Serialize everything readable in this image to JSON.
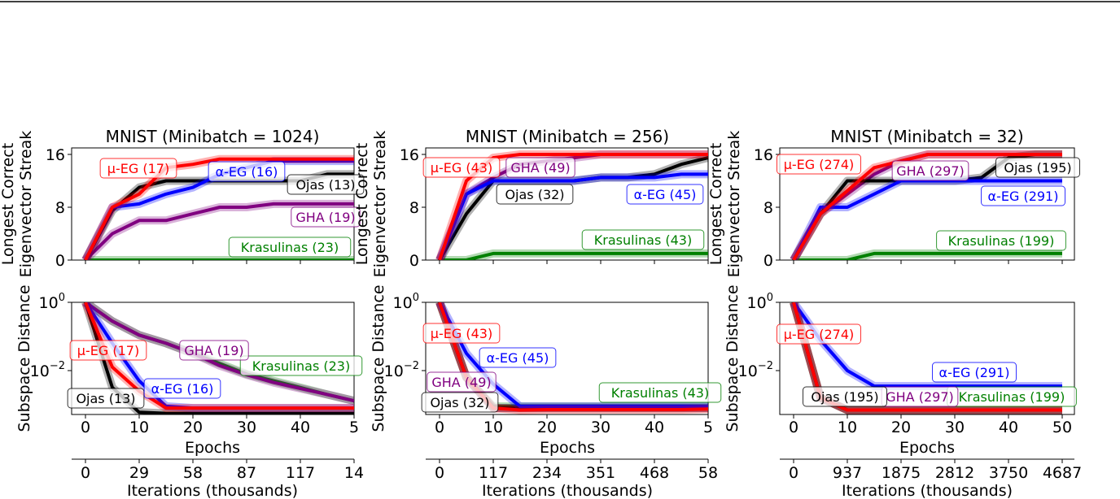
{
  "chart_data": [
    {
      "type": "line",
      "title": "MNIST (Minibatch = 1024)",
      "xlabel": "Epochs",
      "x": [
        0,
        5,
        10,
        15,
        20,
        25,
        30,
        35,
        40,
        45,
        50
      ],
      "x_ticks": [
        "0",
        "10",
        "20",
        "30",
        "40",
        "5"
      ],
      "secondary_xlabel": "Iterations (thousands)",
      "secondary_x_ticks": [
        "0",
        "29",
        "58",
        "87",
        "117",
        "14"
      ],
      "subplots": [
        {
          "ylabel": "Longest Correct Eigenvector Streak",
          "yscale": "linear",
          "ylim": [
            0,
            16
          ],
          "y_ticks": [
            "0",
            "8",
            "16"
          ],
          "series": [
            {
              "name": "Krasulinas (23)",
              "color": "#008000",
              "values": [
                0,
                0,
                0,
                0,
                0,
                0,
                0,
                0,
                0,
                0,
                0
              ]
            },
            {
              "name": "GHA (19)",
              "color": "#800080",
              "values": [
                0,
                4,
                6,
                6,
                7,
                8,
                8,
                8.5,
                8.5,
                8.5,
                8.5
              ]
            },
            {
              "name": "Ojas (13)",
              "color": "#000000",
              "values": [
                0,
                7.5,
                11,
                12,
                12,
                12,
                12,
                12,
                12,
                13,
                13
              ]
            },
            {
              "name": "α-EG (16)",
              "color": "#0000ff",
              "values": [
                0,
                8,
                8.5,
                10,
                11,
                13,
                14,
                15,
                15,
                15,
                15
              ]
            },
            {
              "name": "μ-EG (17)",
              "color": "#ff0000",
              "values": [
                0,
                8,
                10,
                14,
                14.5,
                15.3,
                15.3,
                15.3,
                15.3,
                15.3,
                15.3
              ]
            }
          ]
        },
        {
          "ylabel": "Subspace Distance",
          "yscale": "log",
          "ylim": [
            0.0005,
            1
          ],
          "y_ticks": [
            "10^0",
            "10^-2"
          ],
          "series": [
            {
              "name": "Krasulinas (23)",
              "color": "#008000",
              "values": [
                1,
                0.28,
                0.11,
                0.063,
                0.032,
                0.016,
                0.0079,
                0.005,
                0.0032,
                0.002,
                0.0013
              ]
            },
            {
              "name": "GHA (19)",
              "color": "#800080",
              "values": [
                1,
                0.28,
                0.11,
                0.063,
                0.032,
                0.014,
                0.0075,
                0.0045,
                0.003,
                0.002,
                0.0013
              ]
            },
            {
              "name": "Ojas (13)",
              "color": "#000000",
              "values": [
                1,
                0.0032,
                0.0006,
                0.00056,
                0.00056,
                0.00056,
                0.00056,
                0.00056,
                0.00056,
                0.00056,
                0.00056
              ]
            },
            {
              "name": "α-EG (16)",
              "color": "#0000ff",
              "values": [
                1,
                0.063,
                0.005,
                0.0009,
                0.0008,
                0.0008,
                0.0008,
                0.0008,
                0.0008,
                0.0008,
                0.0008
              ]
            },
            {
              "name": "μ-EG (17)",
              "color": "#ff0000",
              "values": [
                1,
                0.0126,
                0.0025,
                0.0008,
                0.0008,
                0.0008,
                0.0008,
                0.0008,
                0.0008,
                0.0008,
                0.0008
              ]
            }
          ]
        }
      ]
    },
    {
      "type": "line",
      "title": "MNIST (Minibatch = 256)",
      "xlabel": "Epochs",
      "x": [
        0,
        5,
        10,
        15,
        20,
        25,
        30,
        35,
        40,
        45,
        50
      ],
      "x_ticks": [
        "0",
        "10",
        "20",
        "30",
        "40",
        "5"
      ],
      "secondary_xlabel": "Iterations (thousands)",
      "secondary_x_ticks": [
        "0",
        "117",
        "234",
        "351",
        "468",
        "58"
      ],
      "subplots": [
        {
          "ylabel": "Longest Correct Eigenvector Streak",
          "yscale": "linear",
          "ylim": [
            0,
            16
          ],
          "y_ticks": [
            "0",
            "8",
            "16"
          ],
          "series": [
            {
              "name": "Krasulinas (43)",
              "color": "#008000",
              "values": [
                0,
                0,
                1,
                1,
                1,
                1,
                1,
                1,
                1,
                1,
                1
              ]
            },
            {
              "name": "GHA (49)",
              "color": "#800080",
              "values": [
                0,
                10,
                12.5,
                14.5,
                15,
                15.5,
                16,
                16,
                16,
                16,
                16
              ]
            },
            {
              "name": "Ojas (32)",
              "color": "#000000",
              "values": [
                0,
                7,
                12,
                12,
                12,
                12,
                12.5,
                12.5,
                13,
                14.5,
                15.5
              ]
            },
            {
              "name": "α-EG (45)",
              "color": "#0000ff",
              "values": [
                0,
                10,
                12,
                12,
                12,
                12,
                12.5,
                12.5,
                12.5,
                13,
                13
              ]
            },
            {
              "name": "μ-EG (43)",
              "color": "#ff0000",
              "values": [
                0,
                12,
                15.5,
                16,
                16,
                16,
                16,
                16,
                16,
                16,
                16
              ]
            }
          ]
        },
        {
          "ylabel": "Subspace Distance",
          "yscale": "log",
          "ylim": [
            0.0005,
            1
          ],
          "y_ticks": [
            "10^0",
            "10^-2"
          ],
          "series": [
            {
              "name": "Krasulinas (43)",
              "color": "#008000",
              "values": [
                1,
                0.0063,
                0.00089,
                0.00089,
                0.00089,
                0.00089,
                0.00089,
                0.00089,
                0.00089,
                0.00089,
                0.00089
              ]
            },
            {
              "name": "GHA (49)",
              "color": "#800080",
              "values": [
                1,
                0.0063,
                0.0008,
                0.0008,
                0.0008,
                0.0008,
                0.0008,
                0.0008,
                0.0008,
                0.0008,
                0.0008
              ]
            },
            {
              "name": "Ojas (32)",
              "color": "#000000",
              "values": [
                1,
                0.0063,
                0.0008,
                0.0008,
                0.0008,
                0.0008,
                0.0008,
                0.0008,
                0.0008,
                0.0008,
                0.0008
              ]
            },
            {
              "name": "α-EG (45)",
              "color": "#0000ff",
              "values": [
                1,
                0.032,
                0.004,
                0.00089,
                0.00089,
                0.00089,
                0.00089,
                0.00089,
                0.00089,
                0.00089,
                0.00089
              ]
            },
            {
              "name": "μ-EG (43)",
              "color": "#ff0000",
              "values": [
                1,
                0.0063,
                0.0008,
                0.0007,
                0.00072,
                0.00072,
                0.00072,
                0.00072,
                0.00072,
                0.00072,
                0.00075
              ]
            }
          ]
        }
      ]
    },
    {
      "type": "line",
      "title": "MNIST (Minibatch = 32)",
      "xlabel": "Epochs",
      "x": [
        0,
        5,
        10,
        15,
        20,
        25,
        30,
        35,
        40,
        45,
        50
      ],
      "x_ticks": [
        "0",
        "10",
        "20",
        "30",
        "40",
        "50"
      ],
      "secondary_xlabel": "Iterations (thousands)",
      "secondary_x_ticks": [
        "0",
        "937",
        "1875",
        "2812",
        "3750",
        "4687"
      ],
      "subplots": [
        {
          "ylabel": "Longest Correct Eigenvector Streak",
          "yscale": "linear",
          "ylim": [
            0,
            16
          ],
          "y_ticks": [
            "0",
            "8",
            "16"
          ],
          "series": [
            {
              "name": "Krasulinas (199)",
              "color": "#008000",
              "values": [
                0,
                0,
                0,
                1,
                1,
                1,
                1,
                1,
                1,
                1,
                1
              ]
            },
            {
              "name": "GHA (297)",
              "color": "#800080",
              "values": [
                0,
                7,
                10,
                13,
                15,
                16,
                16,
                16,
                16,
                16,
                16
              ]
            },
            {
              "name": "Ojas (195)",
              "color": "#000000",
              "values": [
                0,
                7,
                12,
                12,
                12,
                12,
                12,
                12.5,
                15.5,
                16,
                16
              ]
            },
            {
              "name": "α-EG (291)",
              "color": "#0000ff",
              "values": [
                0,
                8,
                8,
                10,
                12,
                12,
                12,
                12,
                12,
                12,
                12
              ]
            },
            {
              "name": "μ-EG (274)",
              "color": "#ff0000",
              "values": [
                0,
                7,
                10.5,
                14,
                15,
                16,
                16,
                16,
                16,
                16,
                16
              ]
            }
          ]
        },
        {
          "ylabel": "Subspace Distance",
          "yscale": "log",
          "ylim": [
            0.0005,
            1
          ],
          "y_ticks": [
            "10^0",
            "10^-2"
          ],
          "series": [
            {
              "name": "Krasulinas (199)",
              "color": "#008000",
              "values": [
                1,
                0.0016,
                0.0007,
                0.0007,
                0.0007,
                0.0007,
                0.0007,
                0.0007,
                0.0007,
                0.0007,
                0.0007
              ]
            },
            {
              "name": "GHA (297)",
              "color": "#800080",
              "values": [
                1,
                0.0016,
                0.0007,
                0.0007,
                0.0007,
                0.0007,
                0.0007,
                0.0007,
                0.0007,
                0.0007,
                0.0007
              ]
            },
            {
              "name": "Ojas (195)",
              "color": "#000000",
              "values": [
                1,
                0.0016,
                0.0007,
                0.0007,
                0.0007,
                0.0007,
                0.0007,
                0.0007,
                0.0007,
                0.0007,
                0.0007
              ]
            },
            {
              "name": "α-EG (291)",
              "color": "#0000ff",
              "values": [
                1,
                0.079,
                0.01,
                0.0035,
                0.0035,
                0.0035,
                0.0035,
                0.0035,
                0.0035,
                0.0035,
                0.0035
              ]
            },
            {
              "name": "μ-EG (274)",
              "color": "#ff0000",
              "values": [
                1,
                0.0016,
                0.0007,
                0.0007,
                0.0007,
                0.0007,
                0.0007,
                0.0007,
                0.0007,
                0.0007,
                0.0007
              ]
            }
          ]
        }
      ]
    }
  ]
}
